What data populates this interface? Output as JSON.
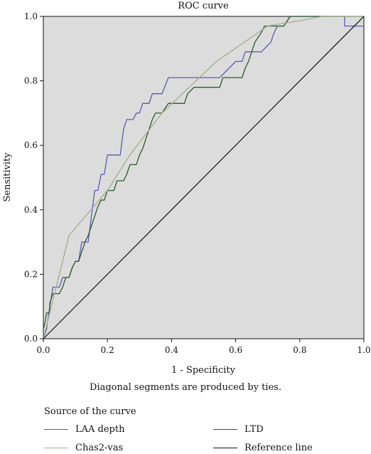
{
  "chart_data": {
    "type": "line",
    "title": "ROC curve",
    "xlabel": "1 - Specificity",
    "ylabel": "Sensitivity",
    "xlim": [
      0,
      1
    ],
    "ylim": [
      0,
      1
    ],
    "x_ticks": [
      "0.0",
      "0.2",
      "0.4",
      "0.6",
      "0.8",
      "1.0"
    ],
    "y_ticks": [
      "0.0",
      "0.2",
      "0.4",
      "0.6",
      "0.8",
      "1.0"
    ],
    "grid": false,
    "plot_background": "#dcdcdc",
    "note": "Diagonal segments are produced by ties.",
    "legend": {
      "title": "Source of the curve",
      "placement": "bottom"
    },
    "series": [
      {
        "name": "LAA depth",
        "color": "#5b5bb0",
        "points": [
          [
            0,
            0
          ],
          [
            0.01,
            0.03
          ],
          [
            0.02,
            0.1
          ],
          [
            0.03,
            0.16
          ],
          [
            0.05,
            0.16
          ],
          [
            0.06,
            0.19
          ],
          [
            0.08,
            0.19
          ],
          [
            0.09,
            0.22
          ],
          [
            0.1,
            0.24
          ],
          [
            0.11,
            0.24
          ],
          [
            0.12,
            0.3
          ],
          [
            0.14,
            0.3
          ],
          [
            0.15,
            0.38
          ],
          [
            0.16,
            0.46
          ],
          [
            0.17,
            0.46
          ],
          [
            0.18,
            0.51
          ],
          [
            0.19,
            0.51
          ],
          [
            0.2,
            0.57
          ],
          [
            0.24,
            0.57
          ],
          [
            0.25,
            0.65
          ],
          [
            0.26,
            0.68
          ],
          [
            0.28,
            0.68
          ],
          [
            0.29,
            0.7
          ],
          [
            0.3,
            0.7
          ],
          [
            0.31,
            0.73
          ],
          [
            0.33,
            0.73
          ],
          [
            0.34,
            0.76
          ],
          [
            0.37,
            0.76
          ],
          [
            0.39,
            0.81
          ],
          [
            0.55,
            0.81
          ],
          [
            0.58,
            0.84
          ],
          [
            0.6,
            0.86
          ],
          [
            0.62,
            0.86
          ],
          [
            0.63,
            0.89
          ],
          [
            0.66,
            0.89
          ],
          [
            0.68,
            0.89
          ],
          [
            0.71,
            0.92
          ],
          [
            0.72,
            0.95
          ],
          [
            0.73,
            0.97
          ],
          [
            0.75,
            0.97
          ],
          [
            0.77,
            1.0
          ],
          [
            0.94,
            1.0
          ],
          [
            0.94,
            0.97
          ],
          [
            1.0,
            0.97
          ]
        ]
      },
      {
        "name": "LTD",
        "color": "#2d5a2d",
        "points": [
          [
            0,
            0
          ],
          [
            0,
            0.03
          ],
          [
            0.005,
            0.05
          ],
          [
            0.01,
            0.08
          ],
          [
            0.02,
            0.08
          ],
          [
            0.02,
            0.11
          ],
          [
            0.03,
            0.14
          ],
          [
            0.05,
            0.14
          ],
          [
            0.06,
            0.16
          ],
          [
            0.07,
            0.19
          ],
          [
            0.08,
            0.19
          ],
          [
            0.09,
            0.22
          ],
          [
            0.1,
            0.24
          ],
          [
            0.11,
            0.24
          ],
          [
            0.12,
            0.27
          ],
          [
            0.13,
            0.3
          ],
          [
            0.14,
            0.32
          ],
          [
            0.15,
            0.35
          ],
          [
            0.16,
            0.38
          ],
          [
            0.17,
            0.41
          ],
          [
            0.18,
            0.43
          ],
          [
            0.19,
            0.43
          ],
          [
            0.2,
            0.46
          ],
          [
            0.22,
            0.46
          ],
          [
            0.23,
            0.49
          ],
          [
            0.25,
            0.49
          ],
          [
            0.26,
            0.51
          ],
          [
            0.27,
            0.54
          ],
          [
            0.29,
            0.54
          ],
          [
            0.3,
            0.57
          ],
          [
            0.31,
            0.59
          ],
          [
            0.32,
            0.62
          ],
          [
            0.33,
            0.65
          ],
          [
            0.34,
            0.68
          ],
          [
            0.35,
            0.7
          ],
          [
            0.37,
            0.7
          ],
          [
            0.39,
            0.73
          ],
          [
            0.44,
            0.73
          ],
          [
            0.45,
            0.76
          ],
          [
            0.47,
            0.78
          ],
          [
            0.55,
            0.78
          ],
          [
            0.56,
            0.81
          ],
          [
            0.62,
            0.81
          ],
          [
            0.63,
            0.84
          ],
          [
            0.64,
            0.86
          ],
          [
            0.65,
            0.89
          ],
          [
            0.66,
            0.92
          ],
          [
            0.68,
            0.95
          ],
          [
            0.69,
            0.97
          ],
          [
            0.71,
            0.97
          ],
          [
            0.72,
            0.97
          ],
          [
            0.75,
            0.97
          ],
          [
            0.77,
            1.0
          ],
          [
            1.0,
            1.0
          ]
        ]
      },
      {
        "name": "Chas2-vas",
        "color": "#a3ab8c",
        "points": [
          [
            0,
            0
          ],
          [
            0.04,
            0.16
          ],
          [
            0.08,
            0.32
          ],
          [
            0.2,
            0.46
          ],
          [
            0.27,
            0.57
          ],
          [
            0.37,
            0.7
          ],
          [
            0.54,
            0.86
          ],
          [
            0.7,
            0.97
          ],
          [
            0.82,
            0.99
          ],
          [
            0.87,
            1.0
          ],
          [
            1.0,
            1.0
          ]
        ]
      },
      {
        "name": "Reference line",
        "color": "#111111",
        "points": [
          [
            0,
            0
          ],
          [
            1,
            1
          ]
        ]
      }
    ]
  }
}
